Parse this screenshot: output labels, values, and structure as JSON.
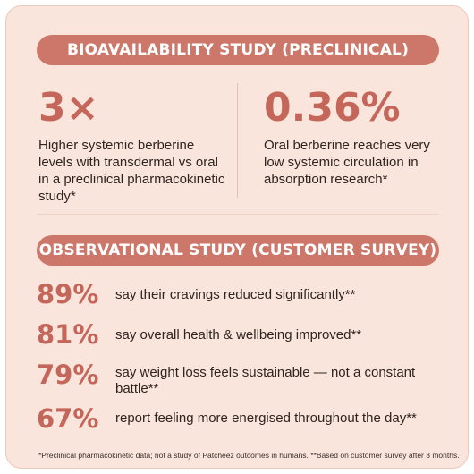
{
  "preclinical": {
    "header": "BIOAVAILABILITY STUDY (PRECLINICAL)",
    "stat_left": {
      "value": "3×",
      "description": "Higher systemic berberine levels with transdermal vs oral in a preclinical pharmacokinetic study*"
    },
    "stat_right": {
      "value": "0.36%",
      "description": "Oral berberine reaches very low systemic circulation in absorption research*"
    }
  },
  "observational": {
    "header": "OBSERVATIONAL STUDY (CUSTOMER SURVEY)",
    "stats": [
      {
        "value": "89%",
        "text": "say their cravings reduced significantly**"
      },
      {
        "value": "81%",
        "text": "say overall health & wellbeing improved**"
      },
      {
        "value": "79%",
        "text": "say weight loss feels sustainable — not a constant battle**"
      },
      {
        "value": "67%",
        "text": "report feeling more energised throughout the day**"
      }
    ]
  },
  "footnote": "*Preclinical pharmacokinetic data; not a study of Patcheez outcomes in humans. **Based on customer survey after 3 months.",
  "colors": {
    "background": "#fae5dc",
    "accent": "#cc7769",
    "stat_text": "#c4675a",
    "body_text": "#2e2420"
  }
}
